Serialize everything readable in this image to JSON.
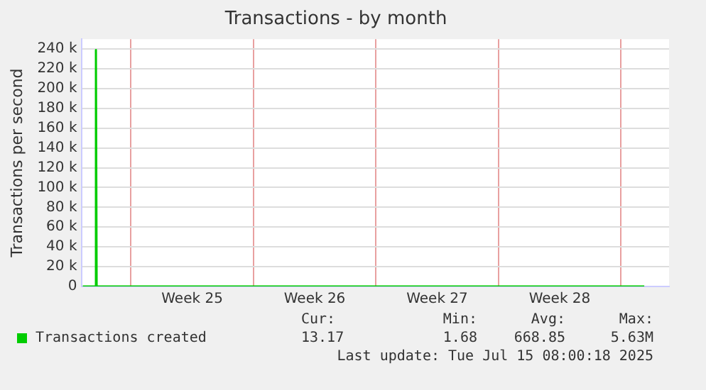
{
  "chart_data": {
    "type": "line",
    "title": "Transactions - by month",
    "ylabel": "Transactions per second",
    "x": [
      "2025-06-13T06:00",
      "2025-06-13T23:00",
      "2025-06-14T00:00",
      "2025-06-14T01:00",
      "2025-06-16T00:00",
      "2025-06-17T00:00",
      "2025-06-20T00:00",
      "2025-06-25T00:00",
      "2025-06-30T00:00",
      "2025-07-05T00:00",
      "2025-07-10T00:00",
      "2025-07-15T08:00"
    ],
    "series": [
      {
        "name": "Transactions created",
        "color": "#00cc00",
        "values": [
          0,
          0,
          239000,
          0,
          0,
          0,
          0,
          0,
          0,
          0,
          0,
          0
        ]
      }
    ],
    "xlim": [
      "2025-06-13T04:00",
      "2025-07-16T18:00"
    ],
    "xticks": [
      {
        "value": "2025-06-16T00:00",
        "label": null
      },
      {
        "value": "2025-06-19T12:00",
        "label": "Week 25"
      },
      {
        "value": "2025-06-23T00:00",
        "label": null
      },
      {
        "value": "2025-06-26T12:00",
        "label": "Week 26"
      },
      {
        "value": "2025-06-30T00:00",
        "label": null
      },
      {
        "value": "2025-07-03T12:00",
        "label": "Week 27"
      },
      {
        "value": "2025-07-07T00:00",
        "label": null
      },
      {
        "value": "2025-07-10T12:00",
        "label": "Week 28"
      },
      {
        "value": "2025-07-14T00:00",
        "label": null
      }
    ],
    "ylim": [
      0,
      250000
    ],
    "yticks": [
      0,
      {
        "value": 20000,
        "label": "20 k"
      },
      {
        "value": 40000,
        "label": "40 k"
      },
      {
        "value": 60000,
        "label": "60 k"
      },
      {
        "value": 80000,
        "label": "80 k"
      },
      {
        "value": 100000,
        "label": "100 k"
      },
      {
        "value": 120000,
        "label": "120 k"
      },
      {
        "value": 140000,
        "label": "140 k"
      },
      {
        "value": 160000,
        "label": "160 k"
      },
      {
        "value": 180000,
        "label": "180 k"
      },
      {
        "value": 200000,
        "label": "200 k"
      },
      {
        "value": 220000,
        "label": "220 k"
      },
      {
        "value": 240000,
        "label": "240 k"
      }
    ],
    "grid": true,
    "legend": "bottom",
    "marker": "none",
    "line_style": "solid",
    "annotations": [
      "Cur:",
      "Min:",
      "Avg:",
      "Max:",
      "13.17",
      "1.68",
      "668.85",
      "5.63M",
      "Last update: Tue Jul 15 08:00:18 2025"
    ]
  }
}
